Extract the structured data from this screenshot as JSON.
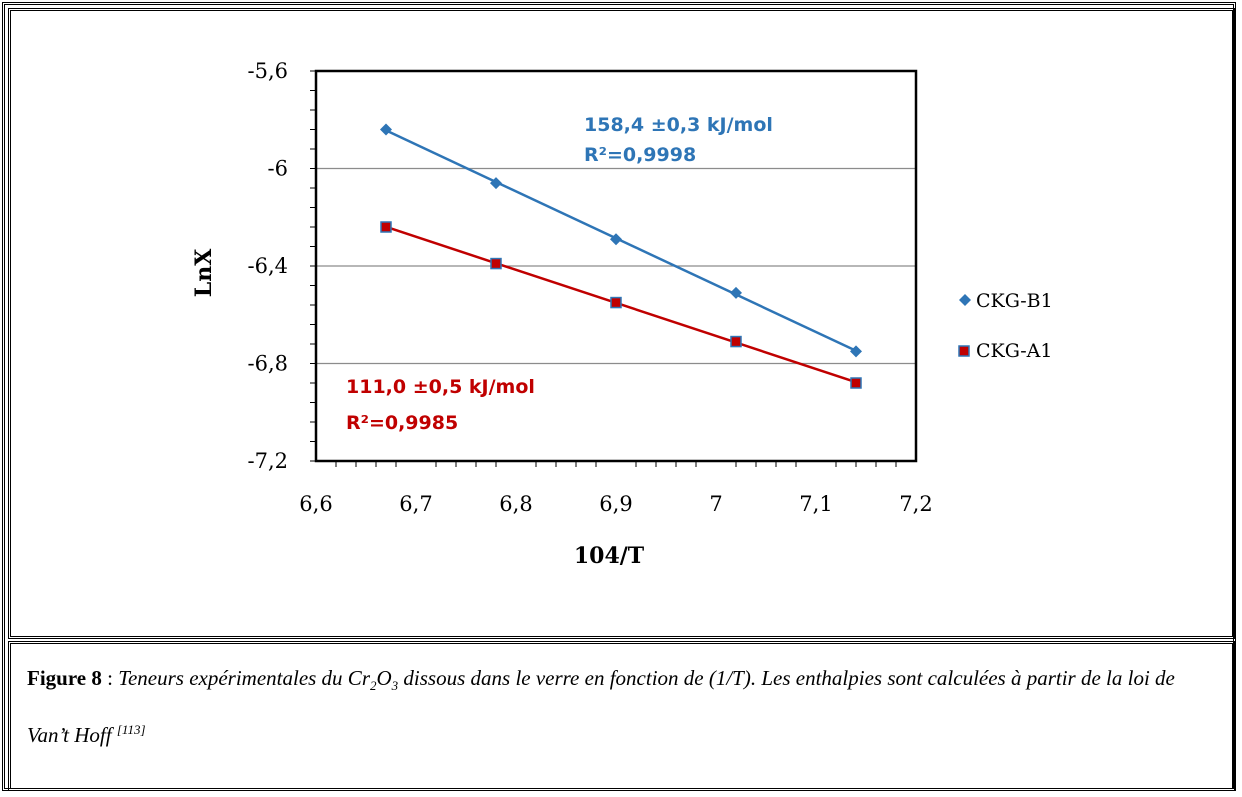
{
  "chart_data": {
    "type": "scatter",
    "xlabel": "104/T",
    "ylabel": "LnX",
    "xlim": [
      6.6,
      7.2
    ],
    "ylim": [
      -7.2,
      -5.6
    ],
    "xticks": [
      "6,6",
      "6,7",
      "6,8",
      "6,9",
      "7",
      "7,1",
      "7,2"
    ],
    "yticks": [
      "-5,6",
      "-6",
      "-6,4",
      "-6,8",
      "-7,2"
    ],
    "grid": "horizontal",
    "legend": "right",
    "series": [
      {
        "name": "CKG-B1",
        "marker": "diamond",
        "color": "#2E75B6",
        "x": [
          6.67,
          6.78,
          6.9,
          7.02,
          7.14
        ],
        "y": [
          -5.84,
          -6.06,
          -6.29,
          -6.51,
          -6.75
        ],
        "fit_label": "158,4 ±0,3 kJ/mol",
        "r2_label": "R²=0,9998"
      },
      {
        "name": "CKG-A1",
        "marker": "square",
        "color": "#C00000",
        "x": [
          6.67,
          6.78,
          6.9,
          7.02,
          7.14
        ],
        "y": [
          -6.24,
          -6.39,
          -6.55,
          -6.71,
          -6.88
        ],
        "fit_label": "111,0 ±0,5 kJ/mol",
        "r2_label": "R²=0,9985"
      }
    ]
  },
  "caption": {
    "label": "Figure 8",
    "separator": " : ",
    "text_1": "Teneurs expérimentales du Cr",
    "sub_1": "2",
    "text_2": "O",
    "sub_2": "3",
    "text_3": " dissous dans le verre en fonction de (1/T). Les enthalpies sont calculées à partir de la loi de Van’t Hoff ",
    "ref": "[113]"
  }
}
